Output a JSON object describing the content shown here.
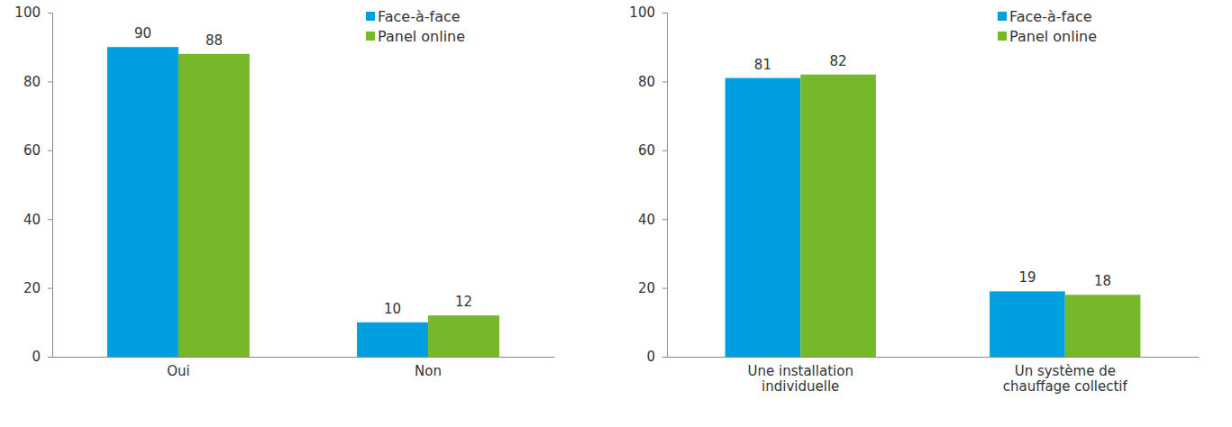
{
  "chart_data": [
    {
      "type": "bar",
      "categories": [
        "Oui",
        "Non"
      ],
      "series": [
        {
          "name": "Face-à-face",
          "color": "#00a0e0",
          "values": [
            90,
            10
          ]
        },
        {
          "name": "Panel online",
          "color": "#77b82a",
          "values": [
            88,
            12
          ]
        }
      ],
      "ylim": [
        0,
        100
      ],
      "yticks": [
        0,
        20,
        40,
        60,
        80,
        100
      ],
      "grid": false,
      "legend": "top-right",
      "data_labels": true
    },
    {
      "type": "bar",
      "categories": [
        "Une installation individuelle",
        "Un système de chauffage collectif"
      ],
      "series": [
        {
          "name": "Face-à-face",
          "color": "#00a0e0",
          "values": [
            81,
            19
          ]
        },
        {
          "name": "Panel online",
          "color": "#77b82a",
          "values": [
            82,
            18
          ]
        }
      ],
      "ylim": [
        0,
        100
      ],
      "yticks": [
        0,
        20,
        40,
        60,
        80,
        100
      ],
      "grid": false,
      "legend": "top-right",
      "data_labels": true
    }
  ]
}
